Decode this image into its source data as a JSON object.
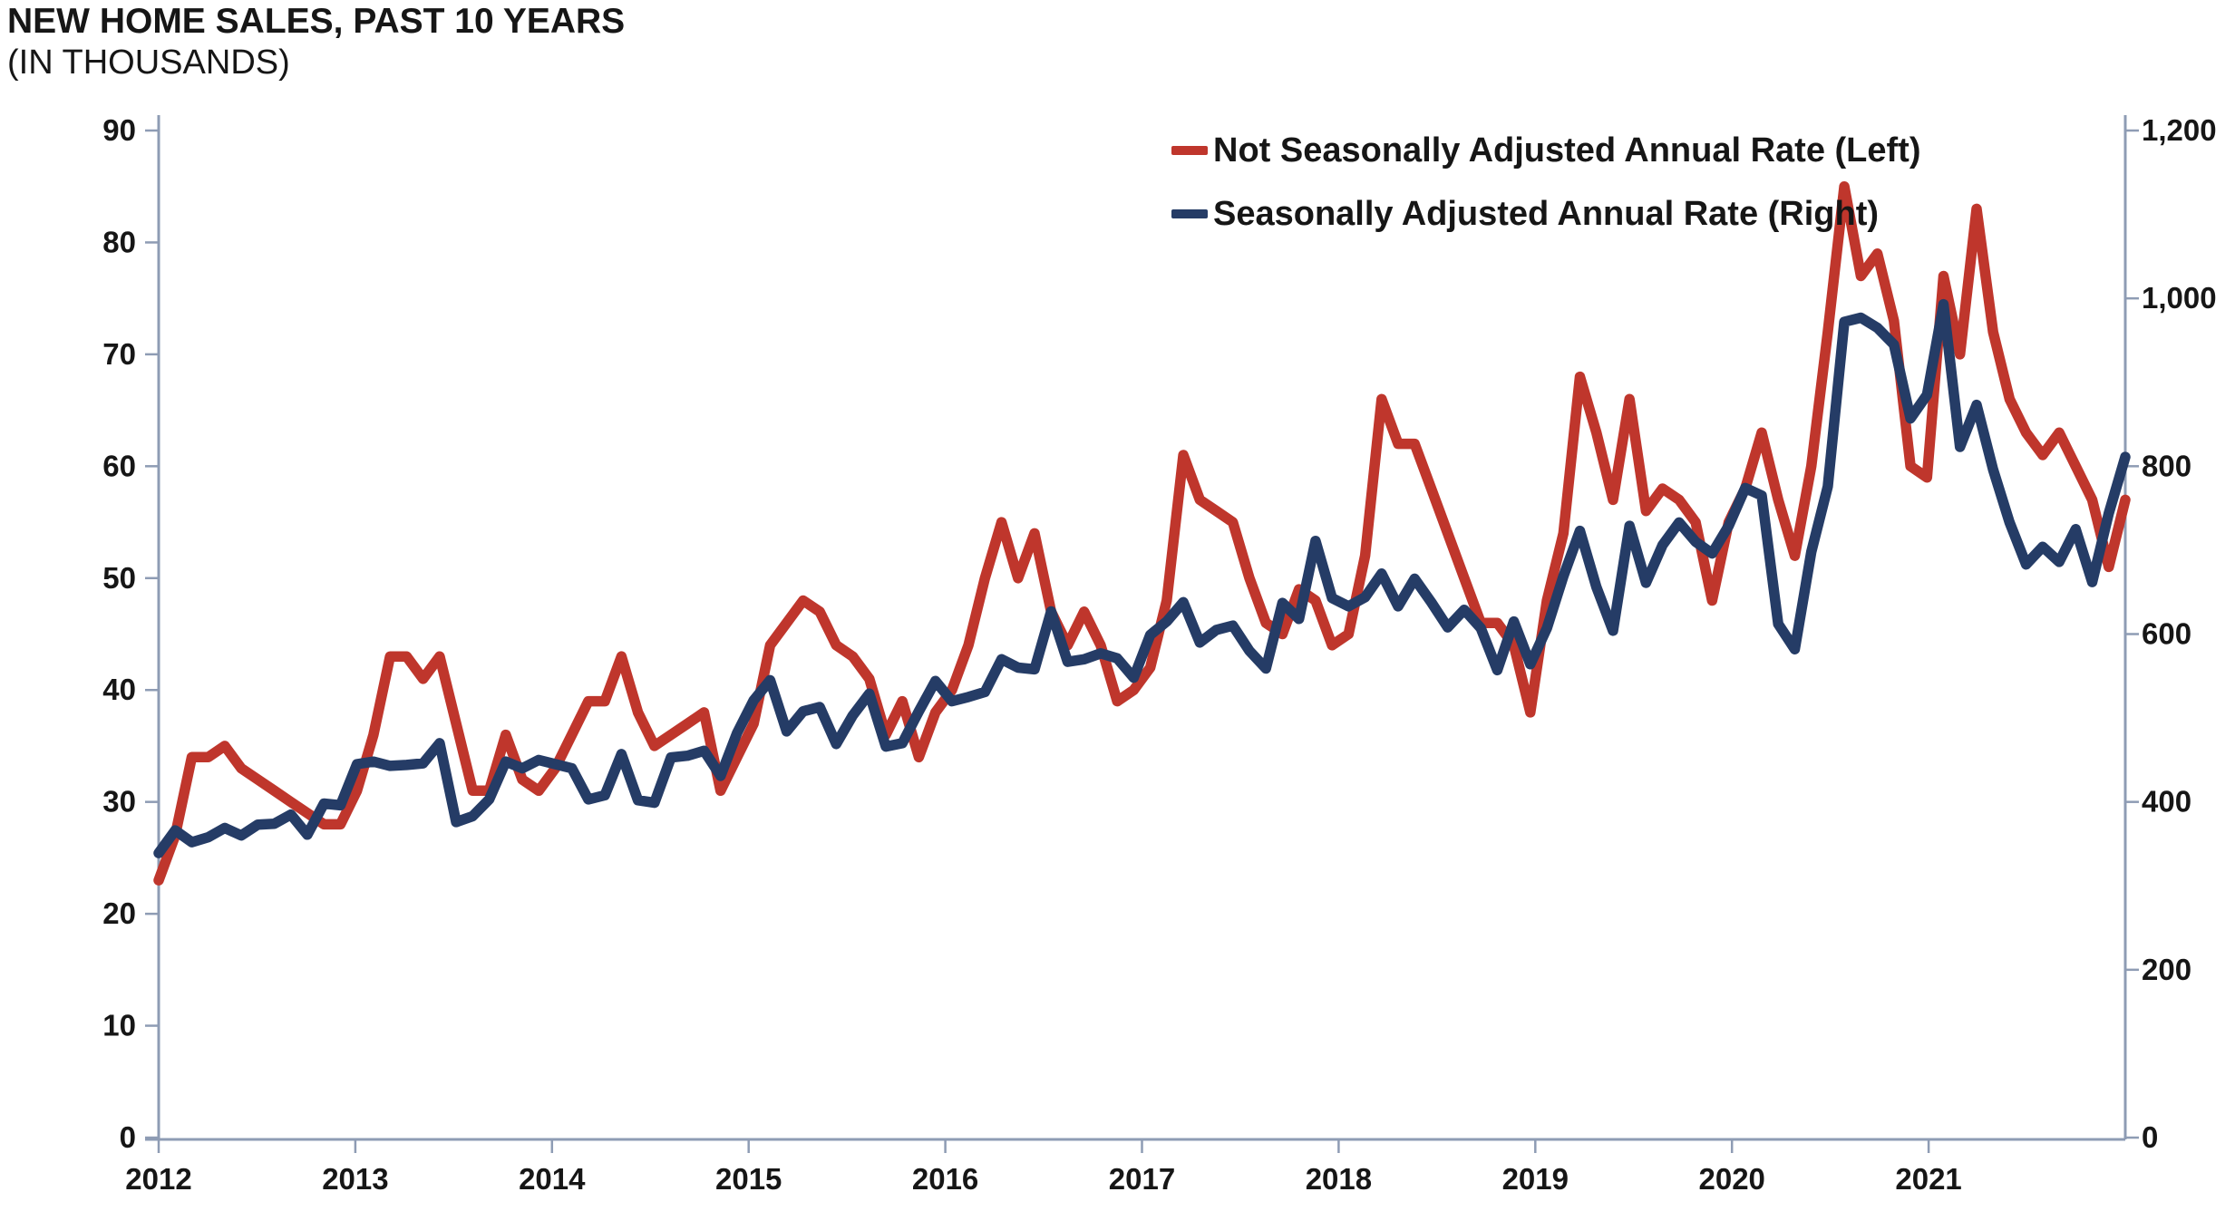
{
  "header": {
    "title": "NEW HOME SALES, PAST 10 YEARS",
    "subtitle": "(IN THOUSANDS)"
  },
  "legend": {
    "items": [
      {
        "label": "Not Seasonally Adjusted Annual Rate (Left)",
        "color": "#bf362c"
      },
      {
        "label": "Seasonally Adjusted Annual Rate (Right)",
        "color": "#253c66"
      }
    ]
  },
  "colors": {
    "nsa_line": "#bf362c",
    "saar_line": "#253c66",
    "axis": "#8e9cb4",
    "text": "#161616"
  },
  "axes": {
    "left_tick_labels": [
      "0",
      "10",
      "20",
      "30",
      "40",
      "50",
      "60",
      "70",
      "80",
      "90"
    ],
    "right_tick_labels": [
      "0",
      "200",
      "400",
      "600",
      "800",
      "1,000",
      "1,200"
    ],
    "x_tick_labels": [
      "2012",
      "2013",
      "2014",
      "2015",
      "2016",
      "2017",
      "2018",
      "2019",
      "2020",
      "2021"
    ]
  },
  "chart_data": {
    "type": "line",
    "title": "NEW HOME SALES, PAST 10 YEARS",
    "subtitle": "(IN THOUSANDS)",
    "x_start": "2012-01",
    "x_freq": "monthly",
    "x_years": [
      2012,
      2013,
      2014,
      2015,
      2016,
      2017,
      2018,
      2019,
      2020,
      2021
    ],
    "grid": false,
    "legend_position": "top-right",
    "left_axis": {
      "label": "Not Seasonally Adjusted Annual Rate",
      "range": [
        0,
        90
      ],
      "tick_step": 10
    },
    "right_axis": {
      "label": "Seasonally Adjusted Annual Rate",
      "range": [
        0,
        1200
      ],
      "tick_step": 200
    },
    "series": [
      {
        "name": "Not Seasonally Adjusted Annual Rate (Left)",
        "axis": "left",
        "color": "#bf362c",
        "values": [
          23,
          27,
          34,
          34,
          35,
          33,
          32,
          31,
          30,
          29,
          28,
          28,
          31,
          36,
          43,
          43,
          41,
          43,
          37,
          31,
          31,
          36,
          32,
          31,
          33,
          36,
          39,
          39,
          43,
          38,
          35,
          36,
          37,
          38,
          31,
          34,
          37,
          44,
          46,
          48,
          47,
          44,
          43,
          41,
          36,
          39,
          34,
          38,
          40,
          44,
          50,
          55,
          50,
          54,
          47,
          44,
          47,
          44,
          39,
          40,
          42,
          48,
          61,
          57,
          56,
          55,
          50,
          46,
          45,
          49,
          48,
          44,
          45,
          52,
          66,
          62,
          62,
          58,
          54,
          50,
          46,
          46,
          44,
          38,
          48,
          54,
          68,
          63,
          57,
          66,
          56,
          58,
          57,
          55,
          48,
          55,
          58,
          63,
          57,
          52,
          60,
          72,
          85,
          77,
          79,
          73,
          60,
          59,
          77,
          70,
          83,
          72,
          66,
          63,
          61,
          63,
          60,
          57,
          51,
          57
        ]
      },
      {
        "name": "Seasonally Adjusted Annual Rate (Right)",
        "axis": "right",
        "color": "#253c66",
        "values": [
          339,
          366,
          352,
          358,
          369,
          360,
          373,
          374,
          385,
          361,
          398,
          396,
          445,
          448,
          443,
          444,
          446,
          470,
          376,
          383,
          403,
          448,
          440,
          450,
          445,
          440,
          403,
          408,
          457,
          402,
          399,
          453,
          455,
          461,
          431,
          482,
          521,
          545,
          484,
          508,
          513,
          469,
          503,
          529,
          466,
          470,
          508,
          544,
          520,
          525,
          531,
          570,
          560,
          558,
          627,
          567,
          570,
          577,
          571,
          548,
          599,
          615,
          638,
          590,
          605,
          610,
          580,
          559,
          637,
          618,
          711,
          643,
          633,
          644,
          672,
          633,
          666,
          638,
          608,
          629,
          607,
          557,
          615,
          564,
          607,
          669,
          723,
          656,
          604,
          729,
          661,
          706,
          733,
          710,
          696,
          729,
          774,
          765,
          612,
          582,
          698,
          776,
          972,
          977,
          965,
          945,
          857,
          885,
          993,
          823,
          873,
          796,
          733,
          683,
          704,
          686,
          725,
          662,
          744,
          811
        ]
      }
    ]
  }
}
